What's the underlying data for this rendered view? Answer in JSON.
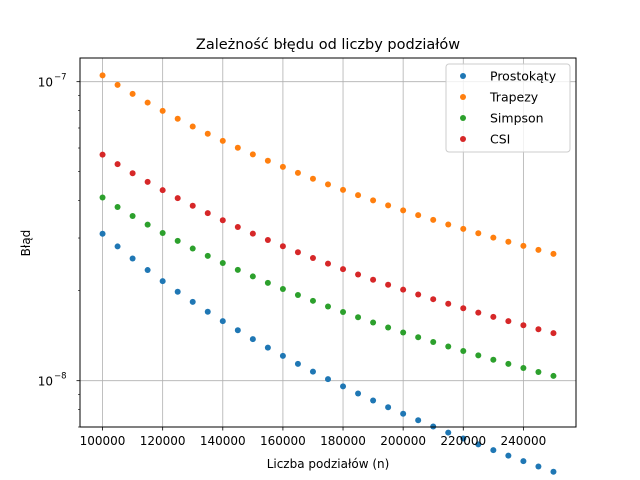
{
  "chart_data": {
    "type": "scatter",
    "title": "Zależność błędu od liczby podziałów",
    "xlabel": "Liczba podziałów (n)",
    "ylabel": "Błąd",
    "xlim": [
      92500,
      257500
    ],
    "ylim": [
      7e-09,
      1.2e-07
    ],
    "yscale": "log",
    "grid": true,
    "legend_position": "top-right",
    "x_ticks": [
      {
        "value": 100000,
        "label": "100000"
      },
      {
        "value": 120000,
        "label": "120000"
      },
      {
        "value": 140000,
        "label": "140000"
      },
      {
        "value": 160000,
        "label": "160000"
      },
      {
        "value": 180000,
        "label": "180000"
      },
      {
        "value": 200000,
        "label": "200000"
      },
      {
        "value": 220000,
        "label": "220000"
      },
      {
        "value": 240000,
        "label": "240000"
      }
    ],
    "y_ticks": [
      {
        "value": 1e-08,
        "base": "10",
        "exp": "−8"
      },
      {
        "value": 1e-07,
        "base": "10",
        "exp": "−7"
      }
    ],
    "x": [
      100000,
      105000,
      110000,
      115000,
      120000,
      125000,
      130000,
      135000,
      140000,
      145000,
      150000,
      155000,
      160000,
      165000,
      170000,
      175000,
      180000,
      185000,
      190000,
      195000,
      200000,
      205000,
      210000,
      215000,
      220000,
      225000,
      230000,
      235000,
      240000,
      245000,
      250000
    ],
    "series": [
      {
        "name": "Prostokąty",
        "color": "#1f77b4",
        "base": 3.1e-08,
        "exponent": -2
      },
      {
        "name": "Trapezy",
        "color": "#ff7f0e",
        "base": 1.05e-07,
        "exponent": -1.5
      },
      {
        "name": "Simpson",
        "color": "#2ca02c",
        "base": 4.1e-08,
        "exponent": -1.5
      },
      {
        "name": "CSI",
        "color": "#d62728",
        "base": 5.7e-08,
        "exponent": -1.5
      }
    ]
  }
}
